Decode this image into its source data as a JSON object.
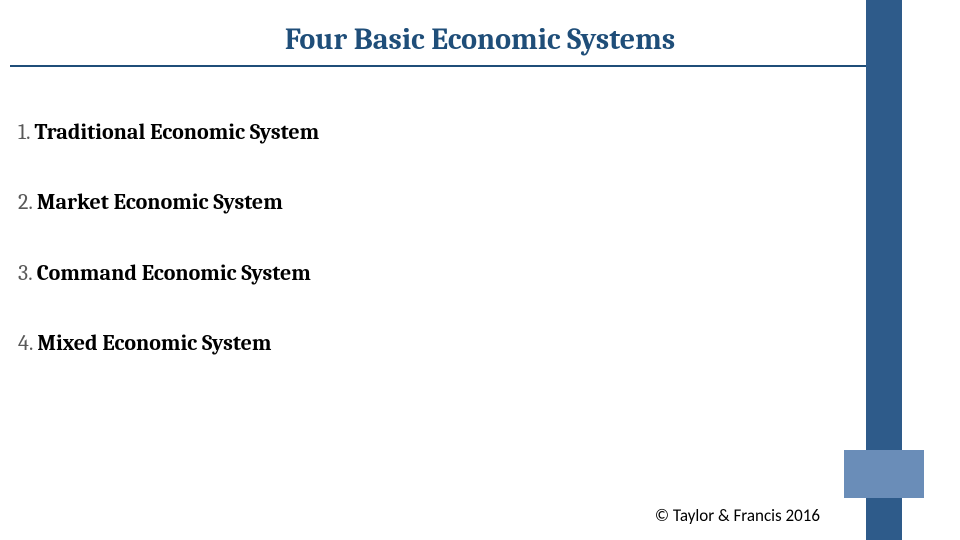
{
  "title": "Four Basic Economic Systems",
  "items": [
    {
      "number": "1.",
      "text": "Traditional Economic System"
    },
    {
      "number": "2.",
      "text": "Market Economic System"
    },
    {
      "number": "3.",
      "text": "Command Economic System"
    },
    {
      "number": "4.",
      "text": "Mixed Economic System"
    }
  ],
  "copyright": "© Taylor & Francis 2016",
  "colors": {
    "title_color": "#1f4e79",
    "text_color": "#000000",
    "number_color": "#595959",
    "sidebar_dark": "#2e5b8a",
    "sidebar_light": "#6a8db8",
    "background": "#ffffff"
  },
  "typography": {
    "title_fontsize": 30,
    "item_fontsize": 22,
    "copyright_fontsize": 17
  }
}
